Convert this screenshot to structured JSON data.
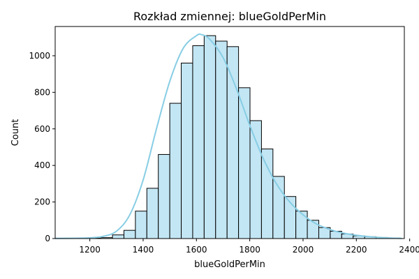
{
  "chart_data": {
    "type": "bar",
    "title": "Rozkład zmiennej: blueGoldPerMin",
    "xlabel": "blueGoldPerMin",
    "ylabel": "Count",
    "xlim": [
      1070,
      2380
    ],
    "ylim": [
      0,
      1160
    ],
    "x_ticks": [
      1200,
      1400,
      1600,
      1800,
      2000,
      2200,
      2400
    ],
    "y_ticks": [
      0,
      200,
      400,
      600,
      800,
      1000
    ],
    "bins": {
      "start": 1070,
      "width": 43,
      "counts": [
        1,
        0,
        1,
        2,
        5,
        20,
        45,
        150,
        275,
        460,
        740,
        960,
        1055,
        1110,
        1080,
        1050,
        825,
        645,
        490,
        340,
        230,
        150,
        100,
        60,
        40,
        25,
        15,
        10,
        6,
        3
      ]
    },
    "kde": {
      "x": [
        1070,
        1150,
        1200,
        1250,
        1300,
        1350,
        1400,
        1450,
        1500,
        1550,
        1600,
        1620,
        1650,
        1700,
        1750,
        1800,
        1850,
        1900,
        1950,
        2000,
        2050,
        2100,
        2150,
        2200,
        2250,
        2300,
        2370
      ],
      "y": [
        1,
        2,
        4,
        12,
        40,
        130,
        320,
        600,
        860,
        1040,
        1110,
        1115,
        1090,
        990,
        820,
        620,
        440,
        300,
        200,
        130,
        80,
        50,
        30,
        18,
        10,
        5,
        1
      ]
    },
    "grid": false,
    "colors": {
      "bar_fill": "#c3e6f4",
      "bar_edge": "#000000",
      "kde_line": "#87cde4"
    }
  }
}
